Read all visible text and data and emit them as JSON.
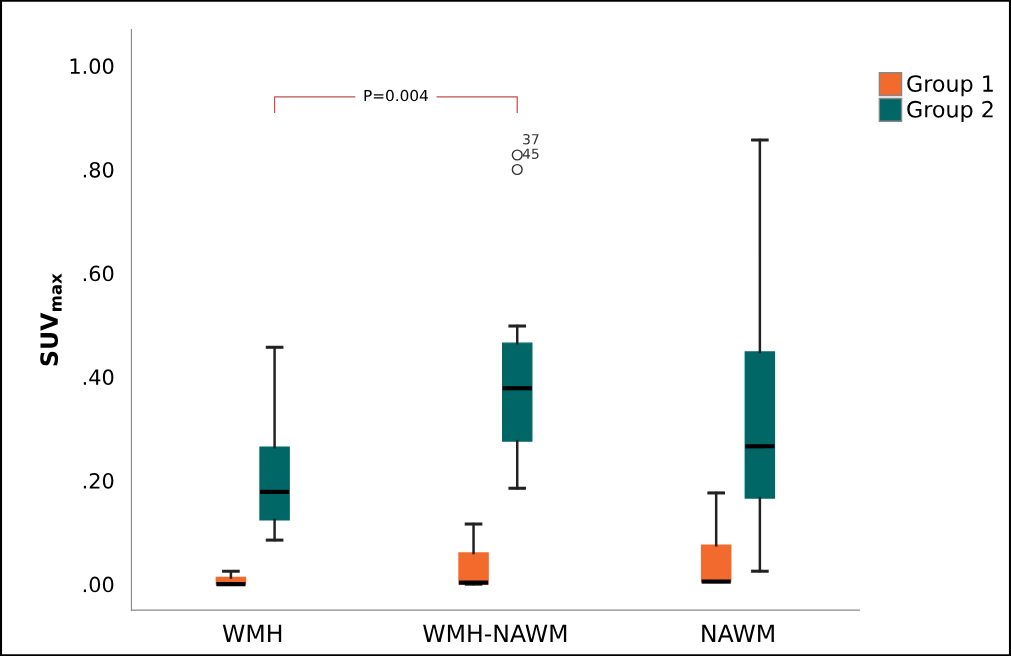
{
  "chart_data": {
    "type": "box",
    "ylabel": "SUV$_{max}$",
    "categories": [
      "WMH",
      "WMH-NAWM",
      "NAWM"
    ],
    "series": [
      {
        "name": "Group 1",
        "color": "#f26a2c",
        "boxes": [
          {
            "low": 0,
            "q1": 0,
            "median": 0,
            "q3": 0.013,
            "high": 0.025
          },
          {
            "low": 0,
            "q1": 0,
            "median": 0.003,
            "q3": 0.06,
            "high": 0.116
          },
          {
            "low": 0.005,
            "q1": 0.005,
            "median": 0.005,
            "q3": 0.075,
            "high": 0.176
          }
        ]
      },
      {
        "name": "Group 2",
        "color": "#006666",
        "boxes": [
          {
            "low": 0.085,
            "q1": 0.124,
            "median": 0.178,
            "q3": 0.264,
            "high": 0.457
          },
          {
            "low": 0.185,
            "q1": 0.276,
            "median": 0.378,
            "q3": 0.465,
            "high": 0.498,
            "outliers": [
              0.828,
              0.8
            ]
          },
          {
            "low": 0.025,
            "q1": 0.166,
            "median": 0.266,
            "q3": 0.448,
            "high": 0.857
          }
        ]
      }
    ],
    "ylim": [
      -0.05,
      1.07
    ],
    "yticks": [
      {
        "value": 0,
        "label": ".00"
      },
      {
        "value": 0.2,
        "label": ".20"
      },
      {
        "value": 0.4,
        "label": ".40"
      },
      {
        "value": 0.6,
        "label": ".60"
      },
      {
        "value": 0.8,
        "label": ".80"
      },
      {
        "value": 1.0,
        "label": "1.00"
      }
    ],
    "grid": false,
    "legend": "top right",
    "annotations": [
      "P=0.004",
      "37",
      "45"
    ]
  }
}
